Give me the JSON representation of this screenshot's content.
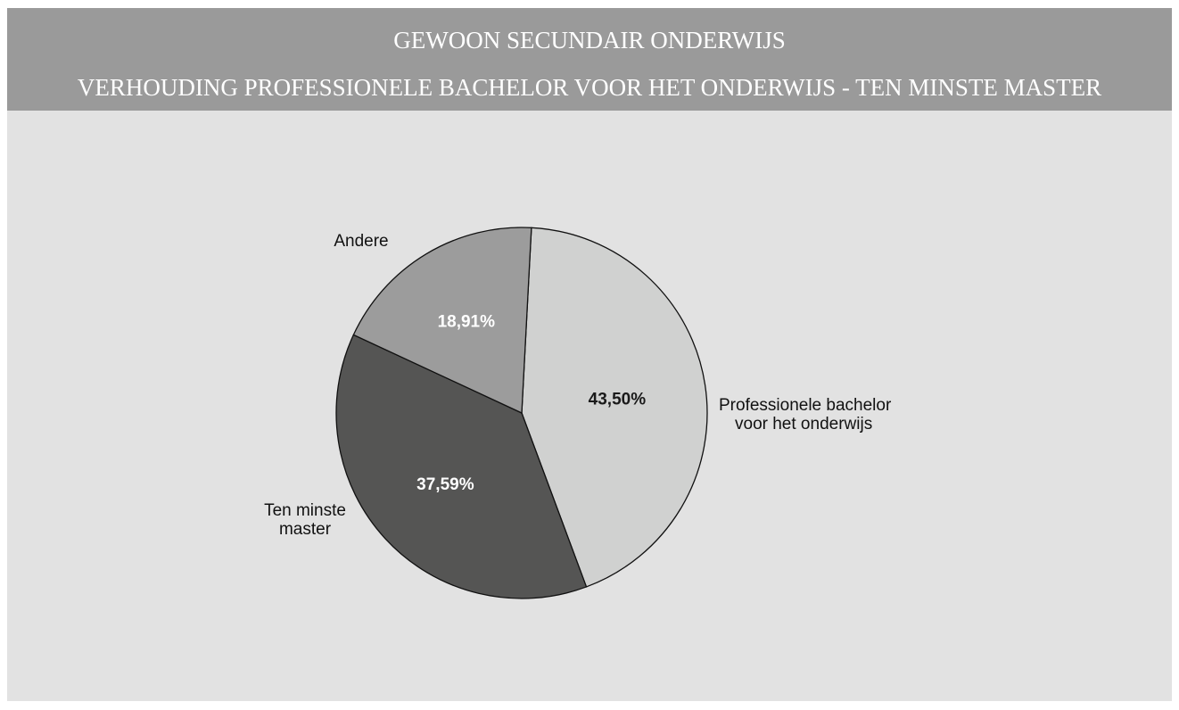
{
  "chart_data": {
    "type": "pie",
    "title": "GEWOON SECUNDAIR ONDERWIJS",
    "subtitle": "VERHOUDING PROFESSIONELE BACHELOR VOOR HET ONDERWIJS - TEN MINSTE MASTER",
    "slices": [
      {
        "category": "Professionele bachelor voor het onderwijs",
        "label_lines": [
          "Professionele bachelor",
          "voor het onderwijs"
        ],
        "value": 43.5,
        "value_label": "43,50%",
        "color": "#d0d1d0",
        "label_color": "#1a1a1a"
      },
      {
        "category": "Ten minste master",
        "label_lines": [
          "Ten minste",
          "master"
        ],
        "value": 37.59,
        "value_label": "37,59%",
        "color": "#555554",
        "label_color": "#ffffff"
      },
      {
        "category": "Andere",
        "label_lines": [
          "Andere"
        ],
        "value": 18.91,
        "value_label": "18,91%",
        "color": "#9c9c9c",
        "label_color": "#ffffff"
      }
    ]
  },
  "colors": {
    "header_background": "#9a9a9a",
    "header_text": "#ffffff",
    "panel_background": "#e2e2e2",
    "slice_outline": "#111111"
  }
}
